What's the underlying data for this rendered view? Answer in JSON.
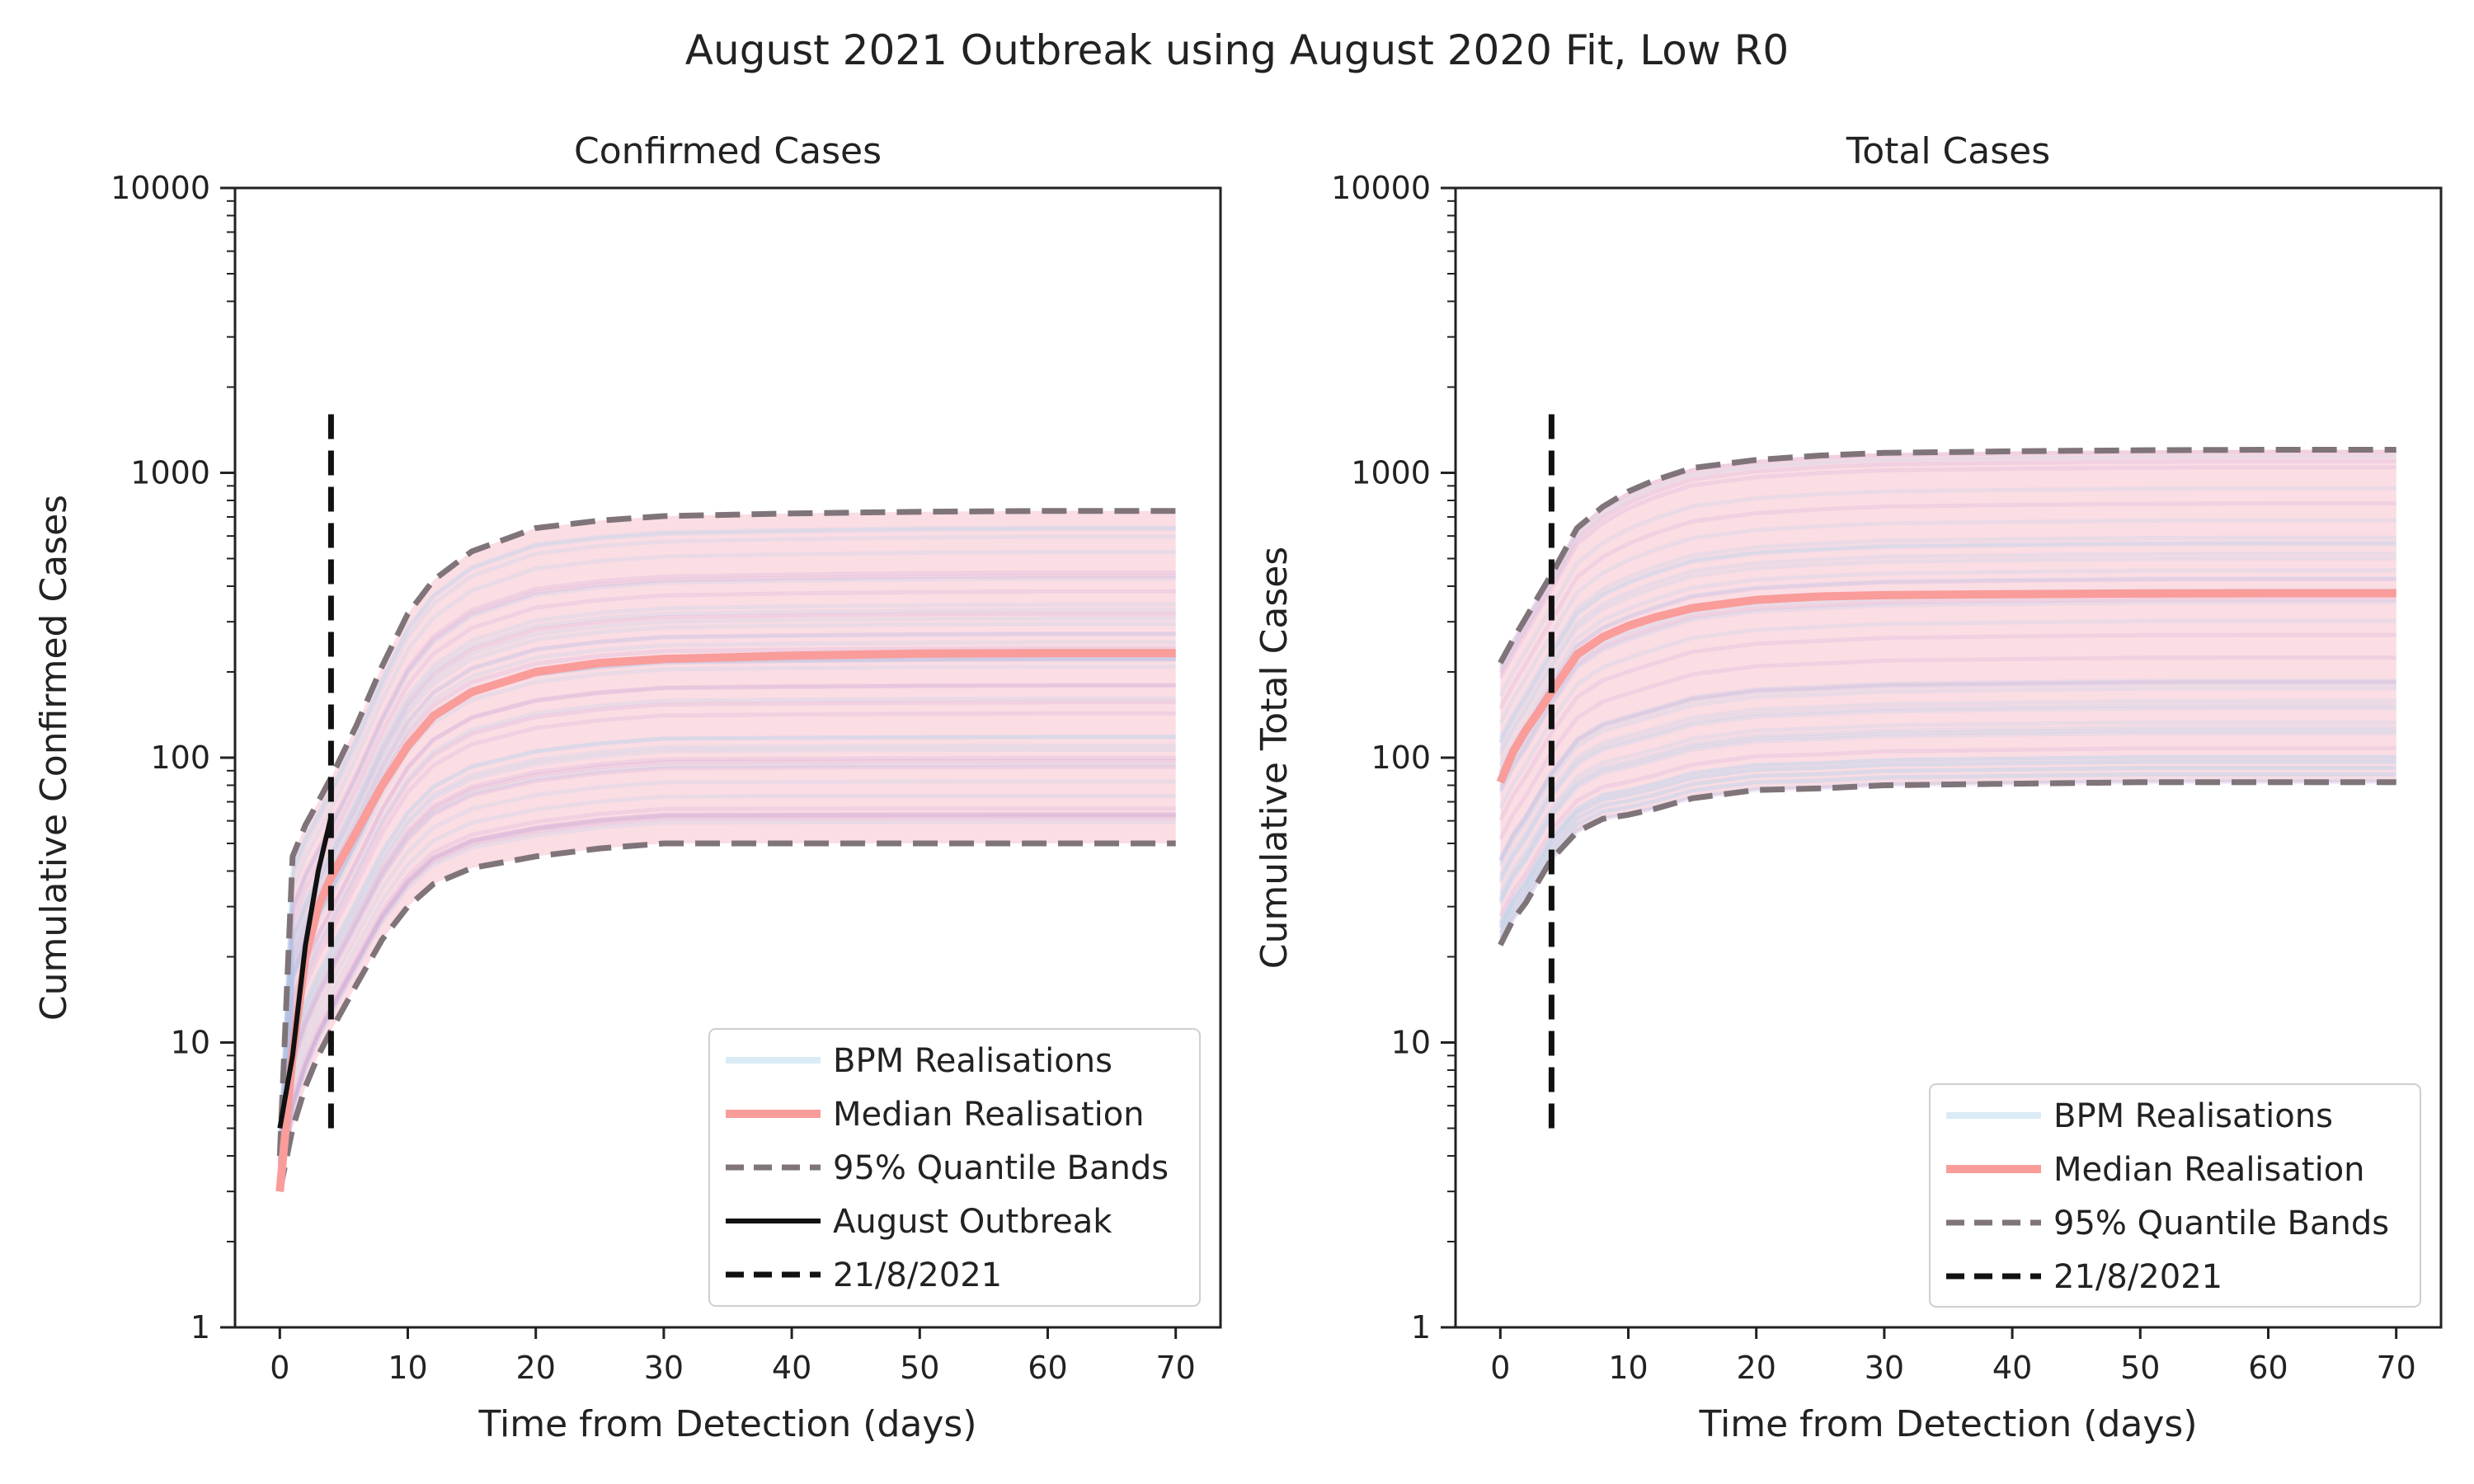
{
  "figure_title": "August 2021 Outbreak using August 2020 Fit, Low R0",
  "colors": {
    "bpm": "#aed3ec",
    "band_fill": "#f7b3c4",
    "median": "#f99c9a",
    "quantile": "#7f7479",
    "outbreak": "#111111",
    "vline": "#111111"
  },
  "chart_data": [
    {
      "type": "line",
      "title": "Confirmed Cases",
      "xlabel": "Time from Detection (days)",
      "ylabel": "Cumulative Confirmed Cases",
      "xlim": [
        -3.5,
        73.5
      ],
      "xticks": [
        0,
        10,
        20,
        30,
        40,
        50,
        60,
        70
      ],
      "ylim": [
        1,
        10000
      ],
      "yscale": "log",
      "yticks": [
        1,
        10,
        100,
        1000,
        10000
      ],
      "ytick_labels": [
        "1",
        "10",
        "100",
        "1000",
        "10000"
      ],
      "legend_position": "lower right",
      "legend": [
        "BPM Realisations",
        "Median Realisation",
        "95% Quantile Bands",
        "August Outbreak",
        "21/8/2021"
      ],
      "series": [
        {
          "name": "Median Realisation",
          "x": [
            0,
            1,
            2,
            3,
            4,
            6,
            8,
            10,
            12,
            15,
            20,
            25,
            30,
            40,
            50,
            60,
            70
          ],
          "y": [
            3,
            9,
            20,
            30,
            38,
            55,
            80,
            110,
            140,
            170,
            200,
            215,
            222,
            228,
            232,
            233,
            233
          ]
        },
        {
          "name": "95% Quantile Bands",
          "x": [
            0,
            1,
            2,
            3,
            4,
            6,
            8,
            10,
            12,
            15,
            20,
            25,
            30,
            40,
            50,
            60,
            70
          ],
          "y": [
            4,
            45,
            58,
            70,
            85,
            130,
            210,
            320,
            420,
            530,
            640,
            680,
            705,
            720,
            730,
            735,
            735
          ]
        },
        {
          "name": "95% Quantile Bands",
          "x": [
            0,
            1,
            2,
            3,
            4,
            6,
            8,
            10,
            12,
            15,
            20,
            25,
            30,
            40,
            50,
            60,
            70
          ],
          "y": [
            3,
            5,
            7,
            9,
            11,
            16,
            23,
            30,
            36,
            41,
            45,
            48,
            50,
            50,
            50,
            50,
            50
          ]
        },
        {
          "name": "August Outbreak",
          "x": [
            0,
            1,
            2,
            3,
            4
          ],
          "y": [
            5,
            9,
            22,
            40,
            62
          ]
        },
        {
          "name": "21/8/2021",
          "x": [
            4,
            4
          ],
          "y": [
            5,
            1700
          ]
        }
      ]
    },
    {
      "type": "line",
      "title": "Total Cases",
      "xlabel": "Time from Detection (days)",
      "ylabel": "Cumulative Total Cases",
      "xlim": [
        -3.5,
        73.5
      ],
      "xticks": [
        0,
        10,
        20,
        30,
        40,
        50,
        60,
        70
      ],
      "ylim": [
        1,
        10000
      ],
      "yscale": "log",
      "yticks": [
        1,
        10,
        100,
        1000,
        10000
      ],
      "ytick_labels": [
        "1",
        "10",
        "100",
        "1000",
        "10000"
      ],
      "legend_position": "lower right",
      "legend": [
        "BPM Realisations",
        "Median Realisation",
        "95% Quantile Bands",
        "21/8/2021"
      ],
      "series": [
        {
          "name": "Median Realisation",
          "x": [
            0,
            1,
            2,
            3,
            4,
            6,
            8,
            10,
            12,
            15,
            20,
            25,
            30,
            40,
            50,
            60,
            70
          ],
          "y": [
            82,
            105,
            125,
            145,
            170,
            230,
            265,
            290,
            310,
            335,
            358,
            368,
            372,
            375,
            377,
            378,
            378
          ]
        },
        {
          "name": "95% Quantile Bands",
          "x": [
            0,
            1,
            2,
            3,
            4,
            6,
            8,
            10,
            12,
            15,
            20,
            25,
            30,
            40,
            50,
            60,
            70
          ],
          "y": [
            215,
            260,
            310,
            370,
            440,
            640,
            760,
            860,
            940,
            1040,
            1110,
            1150,
            1175,
            1190,
            1200,
            1205,
            1205
          ]
        },
        {
          "name": "95% Quantile Bands",
          "x": [
            0,
            1,
            2,
            3,
            4,
            6,
            8,
            10,
            12,
            15,
            20,
            25,
            30,
            40,
            50,
            60,
            70
          ],
          "y": [
            22,
            27,
            31,
            37,
            44,
            55,
            61,
            63,
            66,
            72,
            77,
            78,
            80,
            81,
            82,
            82,
            82
          ]
        },
        {
          "name": "21/8/2021",
          "x": [
            4,
            4
          ],
          "y": [
            5,
            1700
          ]
        }
      ]
    }
  ]
}
